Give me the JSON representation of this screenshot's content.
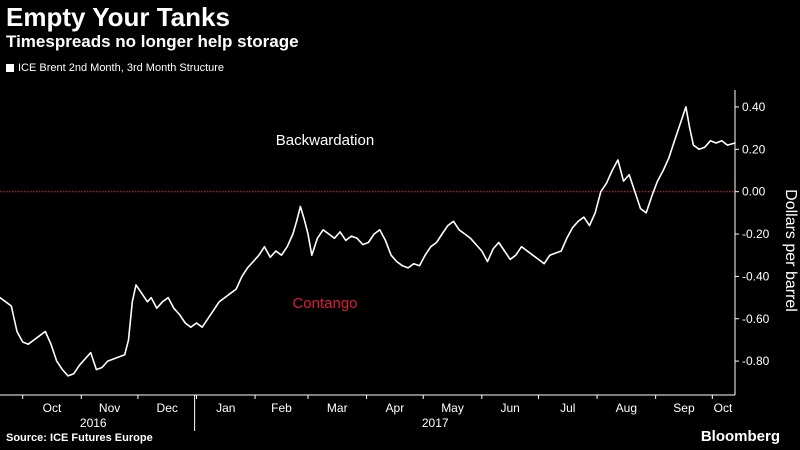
{
  "header": {
    "title": "Empty Your Tanks",
    "subtitle": "Timespreads no longer help storage"
  },
  "footer": {
    "source": "Source: ICE Futures Europe",
    "brand": "Bloomberg"
  },
  "colors": {
    "background": "#000000",
    "series": "#ffffff",
    "zero_line": "#e0193b",
    "contango_label": "#e0193b",
    "axis": "#ffffff"
  },
  "chart_data": {
    "type": "line",
    "title": "Empty Your Tanks",
    "subtitle": "Timespreads no longer help storage",
    "ylabel": "Dollars per barrel",
    "xlabel": "",
    "y_axis_side": "right",
    "ylim": [
      -0.96,
      0.48
    ],
    "y_ticks": [
      0.4,
      0.2,
      0.0,
      -0.2,
      -0.4,
      -0.6,
      -0.8
    ],
    "y_tick_labels": [
      "0.40",
      "0.20",
      "0.00",
      "-0.20",
      "-0.40",
      "-0.60",
      "-0.80"
    ],
    "x_range": [
      "2016-09-19",
      "2017-10-13"
    ],
    "x_ticks": [
      {
        "date": "2016-10-01",
        "label": "Oct"
      },
      {
        "date": "2016-11-01",
        "label": "Nov"
      },
      {
        "date": "2016-12-01",
        "label": "Dec"
      },
      {
        "date": "2017-01-01",
        "label": "Jan"
      },
      {
        "date": "2017-02-01",
        "label": "Feb"
      },
      {
        "date": "2017-03-01",
        "label": "Mar"
      },
      {
        "date": "2017-04-01",
        "label": "Apr"
      },
      {
        "date": "2017-05-01",
        "label": "May"
      },
      {
        "date": "2017-06-01",
        "label": "Jun"
      },
      {
        "date": "2017-07-01",
        "label": "Jul"
      },
      {
        "date": "2017-08-01",
        "label": "Aug"
      },
      {
        "date": "2017-09-01",
        "label": "Sep"
      },
      {
        "date": "2017-10-01",
        "label": "Oct"
      }
    ],
    "year_labels": [
      {
        "date": "2016-11-01",
        "label": "2016"
      },
      {
        "date": "2017-05-01",
        "label": "2017"
      }
    ],
    "year_divider": "2016-12-31",
    "grid": false,
    "legend": {
      "position": "top-left",
      "entries": [
        "ICE Brent 2nd Month, 3rd Month Structure"
      ]
    },
    "reference_line": {
      "y": 0.0,
      "style": "dotted"
    },
    "annotations": [
      {
        "text": "Backwardation",
        "date": "2017-03-10",
        "y": 0.22
      },
      {
        "text": "Contango",
        "date": "2017-03-10",
        "y": -0.55
      }
    ],
    "series": [
      {
        "name": "ICE Brent 2nd Month, 3rd Month Structure",
        "points": [
          [
            "2016-09-19",
            -0.5
          ],
          [
            "2016-09-22",
            -0.52
          ],
          [
            "2016-09-25",
            -0.54
          ],
          [
            "2016-09-28",
            -0.66
          ],
          [
            "2016-10-01",
            -0.71
          ],
          [
            "2016-10-04",
            -0.72
          ],
          [
            "2016-10-07",
            -0.7
          ],
          [
            "2016-10-10",
            -0.68
          ],
          [
            "2016-10-13",
            -0.66
          ],
          [
            "2016-10-16",
            -0.72
          ],
          [
            "2016-10-19",
            -0.8
          ],
          [
            "2016-10-22",
            -0.84
          ],
          [
            "2016-10-25",
            -0.87
          ],
          [
            "2016-10-28",
            -0.86
          ],
          [
            "2016-10-31",
            -0.82
          ],
          [
            "2016-11-03",
            -0.79
          ],
          [
            "2016-11-06",
            -0.76
          ],
          [
            "2016-11-09",
            -0.84
          ],
          [
            "2016-11-12",
            -0.83
          ],
          [
            "2016-11-15",
            -0.8
          ],
          [
            "2016-11-18",
            -0.79
          ],
          [
            "2016-11-21",
            -0.78
          ],
          [
            "2016-11-24",
            -0.77
          ],
          [
            "2016-11-26",
            -0.7
          ],
          [
            "2016-11-28",
            -0.52
          ],
          [
            "2016-11-30",
            -0.44
          ],
          [
            "2016-12-03",
            -0.48
          ],
          [
            "2016-12-06",
            -0.52
          ],
          [
            "2016-12-08",
            -0.5
          ],
          [
            "2016-12-11",
            -0.55
          ],
          [
            "2016-12-14",
            -0.52
          ],
          [
            "2016-12-17",
            -0.5
          ],
          [
            "2016-12-20",
            -0.55
          ],
          [
            "2016-12-23",
            -0.58
          ],
          [
            "2016-12-26",
            -0.62
          ],
          [
            "2016-12-29",
            -0.64
          ],
          [
            "2017-01-01",
            -0.62
          ],
          [
            "2017-01-04",
            -0.64
          ],
          [
            "2017-01-07",
            -0.6
          ],
          [
            "2017-01-10",
            -0.56
          ],
          [
            "2017-01-13",
            -0.52
          ],
          [
            "2017-01-16",
            -0.5
          ],
          [
            "2017-01-19",
            -0.48
          ],
          [
            "2017-01-22",
            -0.46
          ],
          [
            "2017-01-25",
            -0.4
          ],
          [
            "2017-01-28",
            -0.36
          ],
          [
            "2017-01-31",
            -0.33
          ],
          [
            "2017-02-03",
            -0.3
          ],
          [
            "2017-02-06",
            -0.26
          ],
          [
            "2017-02-09",
            -0.31
          ],
          [
            "2017-02-12",
            -0.28
          ],
          [
            "2017-02-15",
            -0.3
          ],
          [
            "2017-02-18",
            -0.26
          ],
          [
            "2017-02-21",
            -0.2
          ],
          [
            "2017-02-23",
            -0.14
          ],
          [
            "2017-02-25",
            -0.07
          ],
          [
            "2017-02-27",
            -0.13
          ],
          [
            "2017-03-01",
            -0.2
          ],
          [
            "2017-03-03",
            -0.3
          ],
          [
            "2017-03-06",
            -0.22
          ],
          [
            "2017-03-09",
            -0.18
          ],
          [
            "2017-03-12",
            -0.2
          ],
          [
            "2017-03-15",
            -0.22
          ],
          [
            "2017-03-18",
            -0.19
          ],
          [
            "2017-03-21",
            -0.23
          ],
          [
            "2017-03-24",
            -0.21
          ],
          [
            "2017-03-27",
            -0.22
          ],
          [
            "2017-03-30",
            -0.25
          ],
          [
            "2017-04-02",
            -0.24
          ],
          [
            "2017-04-05",
            -0.2
          ],
          [
            "2017-04-08",
            -0.18
          ],
          [
            "2017-04-11",
            -0.23
          ],
          [
            "2017-04-14",
            -0.3
          ],
          [
            "2017-04-17",
            -0.33
          ],
          [
            "2017-04-20",
            -0.35
          ],
          [
            "2017-04-23",
            -0.36
          ],
          [
            "2017-04-26",
            -0.34
          ],
          [
            "2017-04-29",
            -0.35
          ],
          [
            "2017-05-02",
            -0.3
          ],
          [
            "2017-05-05",
            -0.26
          ],
          [
            "2017-05-08",
            -0.24
          ],
          [
            "2017-05-11",
            -0.2
          ],
          [
            "2017-05-14",
            -0.16
          ],
          [
            "2017-05-17",
            -0.14
          ],
          [
            "2017-05-20",
            -0.18
          ],
          [
            "2017-05-23",
            -0.2
          ],
          [
            "2017-05-26",
            -0.22
          ],
          [
            "2017-05-29",
            -0.25
          ],
          [
            "2017-06-01",
            -0.28
          ],
          [
            "2017-06-04",
            -0.33
          ],
          [
            "2017-06-07",
            -0.27
          ],
          [
            "2017-06-10",
            -0.24
          ],
          [
            "2017-06-13",
            -0.28
          ],
          [
            "2017-06-16",
            -0.32
          ],
          [
            "2017-06-19",
            -0.3
          ],
          [
            "2017-06-22",
            -0.26
          ],
          [
            "2017-06-25",
            -0.28
          ],
          [
            "2017-06-28",
            -0.3
          ],
          [
            "2017-07-01",
            -0.32
          ],
          [
            "2017-07-04",
            -0.34
          ],
          [
            "2017-07-07",
            -0.3
          ],
          [
            "2017-07-10",
            -0.29
          ],
          [
            "2017-07-13",
            -0.28
          ],
          [
            "2017-07-16",
            -0.22
          ],
          [
            "2017-07-19",
            -0.17
          ],
          [
            "2017-07-22",
            -0.14
          ],
          [
            "2017-07-25",
            -0.12
          ],
          [
            "2017-07-28",
            -0.16
          ],
          [
            "2017-07-31",
            -0.1
          ],
          [
            "2017-08-03",
            0.0
          ],
          [
            "2017-08-06",
            0.04
          ],
          [
            "2017-08-09",
            0.1
          ],
          [
            "2017-08-12",
            0.15
          ],
          [
            "2017-08-15",
            0.05
          ],
          [
            "2017-08-18",
            0.08
          ],
          [
            "2017-08-21",
            0.0
          ],
          [
            "2017-08-24",
            -0.08
          ],
          [
            "2017-08-27",
            -0.1
          ],
          [
            "2017-08-30",
            -0.02
          ],
          [
            "2017-09-02",
            0.05
          ],
          [
            "2017-09-05",
            0.1
          ],
          [
            "2017-09-08",
            0.16
          ],
          [
            "2017-09-11",
            0.24
          ],
          [
            "2017-09-14",
            0.32
          ],
          [
            "2017-09-17",
            0.4
          ],
          [
            "2017-09-19",
            0.3
          ],
          [
            "2017-09-21",
            0.22
          ],
          [
            "2017-09-24",
            0.2
          ],
          [
            "2017-09-27",
            0.21
          ],
          [
            "2017-09-30",
            0.24
          ],
          [
            "2017-10-03",
            0.23
          ],
          [
            "2017-10-06",
            0.24
          ],
          [
            "2017-10-09",
            0.22
          ],
          [
            "2017-10-13",
            0.23
          ]
        ]
      }
    ]
  }
}
